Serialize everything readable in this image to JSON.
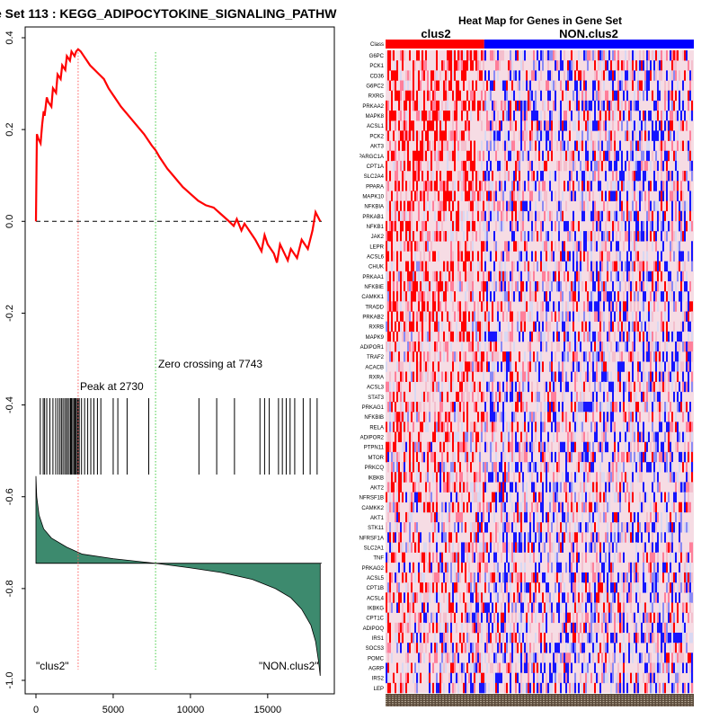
{
  "chart_data": [
    {
      "type": "line",
      "title": "e Set  113 : KEGG_ADIPOCYTOKINE_SIGNALING_PATHW",
      "xlabel": "",
      "ylabel": "",
      "xlim": [
        0,
        18500
      ],
      "ylim": [
        -1.0,
        0.4
      ],
      "x_ticks": [
        0,
        5000,
        10000,
        15000
      ],
      "x_tick_labels": [
        "0",
        "5000",
        "10000",
        "15000"
      ],
      "y_ticks": [
        0.4,
        0.2,
        0.0,
        -0.2,
        -0.4,
        -0.6,
        -0.8,
        -1.0
      ],
      "y_tick_labels": [
        "0.4",
        "0.2",
        "0.0",
        "-0.2",
        "-0.4",
        "-0.6",
        "-0.8",
        "-1.0"
      ],
      "peak_x": 2730,
      "zero_crossing_x": 7743,
      "peak_label": "Peak at 2730",
      "zero_label": "Zero crossing at 7743",
      "left_label": "\"clus2\"",
      "right_label": "\"NON.clus2\"",
      "colors": {
        "es_line": "#ff0000",
        "peak_line": "#ff5a5a",
        "zero_line": "#44cc44",
        "fill": "#3d8a6e",
        "hits": "#000000"
      },
      "es_curve": {
        "x": [
          0,
          60,
          150,
          300,
          400,
          500,
          560,
          700,
          800,
          1000,
          1100,
          1300,
          1400,
          1600,
          1700,
          1900,
          2000,
          2200,
          2300,
          2500,
          2600,
          2730,
          2900,
          3100,
          3300,
          3500,
          3800,
          4100,
          4400,
          4700,
          5000,
          5500,
          6000,
          6500,
          7000,
          7500,
          7743,
          8000,
          8500,
          9000,
          9500,
          10000,
          10500,
          11000,
          11500,
          12000,
          12500,
          12800,
          13000,
          13300,
          13500,
          13800,
          14200,
          14600,
          14800,
          15000,
          15400,
          15600,
          15800,
          16300,
          16500,
          16900,
          17200,
          17600,
          17900,
          18100,
          18400
        ],
        "y": [
          0.0,
          0.19,
          0.18,
          0.17,
          0.21,
          0.24,
          0.23,
          0.27,
          0.26,
          0.25,
          0.29,
          0.28,
          0.32,
          0.31,
          0.34,
          0.33,
          0.36,
          0.35,
          0.37,
          0.36,
          0.37,
          0.375,
          0.37,
          0.36,
          0.35,
          0.34,
          0.33,
          0.32,
          0.31,
          0.29,
          0.275,
          0.25,
          0.23,
          0.21,
          0.19,
          0.165,
          0.155,
          0.14,
          0.115,
          0.095,
          0.075,
          0.06,
          0.045,
          0.035,
          0.03,
          0.015,
          0.0,
          -0.01,
          0.005,
          -0.02,
          -0.005,
          -0.02,
          -0.04,
          -0.065,
          -0.03,
          -0.05,
          -0.07,
          -0.09,
          -0.05,
          -0.085,
          -0.06,
          -0.08,
          -0.04,
          -0.06,
          -0.02,
          0.02,
          0.0
        ]
      },
      "hit_positions": [
        280,
        470,
        560,
        700,
        900,
        1100,
        1280,
        1420,
        1550,
        1650,
        1750,
        1860,
        1960,
        2050,
        2150,
        2240,
        2300,
        2380,
        2460,
        2530,
        2600,
        2680,
        2730,
        2800,
        2950,
        3150,
        3350,
        3550,
        3750,
        3980,
        4200,
        5000,
        5300,
        5900,
        7300,
        10550,
        11700,
        12850,
        14500,
        14800,
        15100,
        15700,
        15950,
        16200,
        16450,
        16750,
        17300,
        17750,
        18200
      ],
      "ranked_metric": {
        "x": [
          0,
          50,
          200,
          500,
          1000,
          2000,
          3000,
          5000,
          7743,
          10000,
          12000,
          14000,
          15500,
          16500,
          17200,
          17800,
          18100,
          18300,
          18400
        ],
        "y": [
          -0.555,
          -0.6,
          -0.64,
          -0.67,
          -0.69,
          -0.71,
          -0.725,
          -0.735,
          -0.745,
          -0.755,
          -0.765,
          -0.78,
          -0.8,
          -0.82,
          -0.845,
          -0.88,
          -0.915,
          -0.96,
          -0.99
        ],
        "baseline": -0.745
      }
    },
    {
      "type": "heatmap",
      "title": "Heat Map for Genes in Gene Set",
      "class_label": "Class",
      "groups": [
        {
          "name": "clus2",
          "fraction": 0.32,
          "color": "#ff0000"
        },
        {
          "name": "NON.clus2",
          "fraction": 0.68,
          "color": "#0000ff"
        }
      ],
      "genes": [
        "G6PC",
        "PCK1",
        "CD36",
        "G6PC2",
        "RXRG",
        "PRKAA2",
        "MAPK8",
        "ACSL1",
        "PCK2",
        "AKT3",
        "PPARGC1A",
        "CPT1A",
        "SLC2A4",
        "PPARA",
        "MAPK10",
        "NFKBIA",
        "PRKAB1",
        "NFKB1",
        "JAK2",
        "LEPR",
        "ACSL6",
        "CHUK",
        "PRKAA1",
        "NFKBIE",
        "CAMKK1",
        "TRADD",
        "PRKAB2",
        "RXRB",
        "MAPK9",
        "ADIPOR1",
        "TRAF2",
        "ACACB",
        "RXRA",
        "ACSL3",
        "STAT3",
        "PRKAG1",
        "NFKBIB",
        "RELA",
        "ADIPOR2",
        "PTPN11",
        "MTOR",
        "PRKCQ",
        "IKBKB",
        "AKT2",
        "TNFRSF1B",
        "CAMKK2",
        "AKT1",
        "STK11",
        "TNFRSF1A",
        "SLC2A1",
        "TNF",
        "PRKAG2",
        "ACSL5",
        "CPT1B",
        "ACSL4",
        "IKBKG",
        "CPT1C",
        "ADIPOQ",
        "IRS1",
        "SOCS3",
        "POMC",
        "AGRP",
        "IRS2",
        "LEP"
      ],
      "colors": {
        "high": "#ff0000",
        "low": "#0000ff",
        "mid": "#ffffff"
      }
    }
  ]
}
